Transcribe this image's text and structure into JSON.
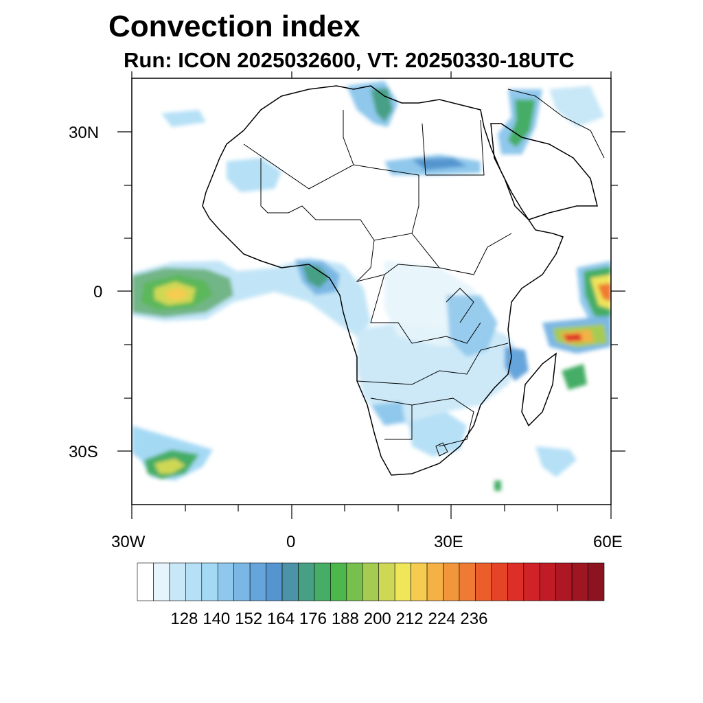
{
  "title": "Convection index",
  "subtitle": "Run: ICON 2025032600,  VT: 20250330-18UTC",
  "map": {
    "lon_range": [
      -30,
      60
    ],
    "lat_range": [
      -40,
      40
    ],
    "lon_ticks": [
      {
        "lon": -30,
        "label": "30W"
      },
      {
        "lon": 0,
        "label": "0"
      },
      {
        "lon": 30,
        "label": "30E"
      },
      {
        "lon": 60,
        "label": "60E"
      }
    ],
    "lat_ticks": [
      {
        "lat": 30,
        "label": "30N"
      },
      {
        "lat": 0,
        "label": "0"
      },
      {
        "lat": -30,
        "label": "30S"
      }
    ],
    "region": "Africa"
  },
  "colorbar": {
    "labels": [
      "128",
      "140",
      "152",
      "164",
      "176",
      "188",
      "200",
      "212",
      "224",
      "236"
    ],
    "colors": [
      "#ffffff",
      "#e6f4fb",
      "#c8e7f7",
      "#b6e0f6",
      "#a4d9f4",
      "#8fc8ec",
      "#7bb7e4",
      "#66a5db",
      "#5595cf",
      "#4c93a8",
      "#47a085",
      "#45ad65",
      "#4cb84c",
      "#78c04e",
      "#a5cb52",
      "#cfd855",
      "#efe65a",
      "#f5cc4f",
      "#f4b145",
      "#f2963b",
      "#ef7a33",
      "#eb5e2b",
      "#e64427",
      "#dd2f27",
      "#cf2327",
      "#bf1c26",
      "#ae1824",
      "#9d1622",
      "#8c1420"
    ]
  }
}
